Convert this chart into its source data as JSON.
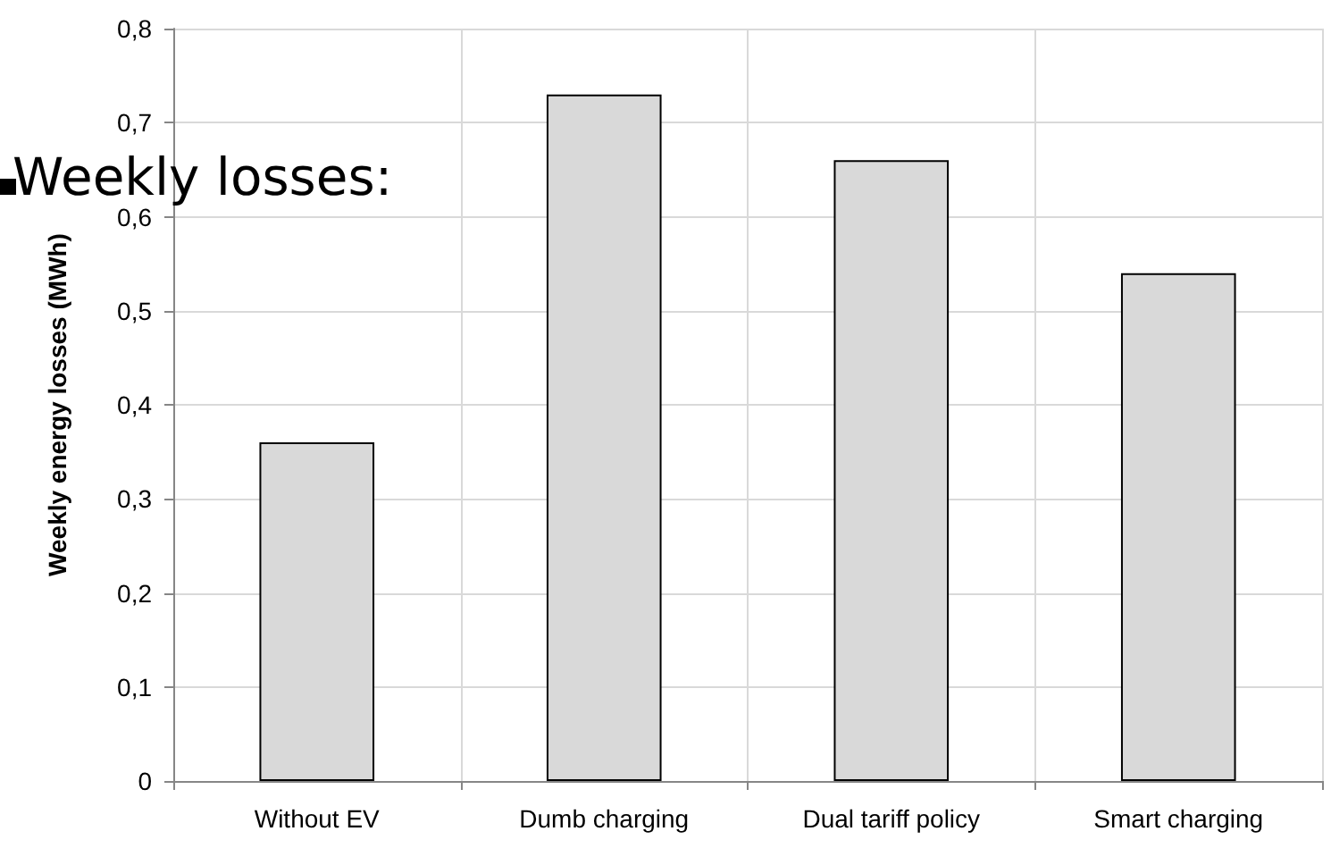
{
  "chart_data": {
    "type": "bar",
    "ylabel": "Weekly energy losses (MWh)",
    "annotations": [
      "Weekly losses:"
    ],
    "categories": [
      "Without EV",
      "Dumb charging",
      "Dual tariff policy",
      "Smart charging"
    ],
    "values": [
      0.36,
      0.73,
      0.66,
      0.54
    ],
    "color": "#d9d9d9",
    "ylim": [
      0,
      0.8
    ],
    "yticks": [
      {
        "value": 0,
        "label": "0"
      },
      {
        "value": 0.1,
        "label": "0,1"
      },
      {
        "value": 0.2,
        "label": "0,2"
      },
      {
        "value": 0.3,
        "label": "0,3"
      },
      {
        "value": 0.4,
        "label": "0,4"
      },
      {
        "value": 0.5,
        "label": "0,5"
      },
      {
        "value": 0.6,
        "label": "0,6"
      },
      {
        "value": 0.7,
        "label": "0,7"
      },
      {
        "value": 0.8,
        "label": "0,8"
      }
    ],
    "grid": true
  }
}
